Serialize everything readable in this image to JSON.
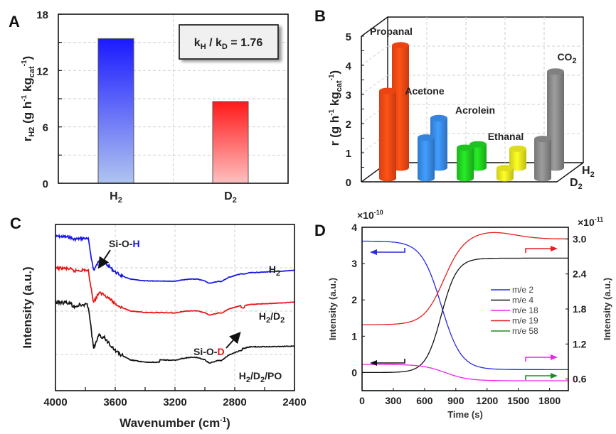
{
  "chart_data": [
    {
      "panel": "A",
      "type": "bar",
      "title": "",
      "categories": [
        "H2",
        "D2"
      ],
      "category_labels": [
        {
          "base": "H",
          "sub": "2"
        },
        {
          "base": "D",
          "sub": "2"
        }
      ],
      "values": [
        15.4,
        8.7
      ],
      "colors": [
        {
          "top": "#1a1aff",
          "bottom": "#b0c4f0"
        },
        {
          "top": "#ff1a1a",
          "bottom": "#ffc0c0"
        }
      ],
      "xlabel": "",
      "ylabel": {
        "base": "r",
        "sub": "H2",
        "rest": " (g h",
        "sup1": "-1",
        "mid": " kg",
        "sub2": "cat",
        "sup2": "-1",
        "end": ")"
      },
      "ylim": [
        0,
        18
      ],
      "yticks": [
        0,
        6,
        12,
        18
      ],
      "grid": true,
      "annotation": {
        "k1": "k",
        "s1": "H",
        "slash": " / ",
        "k2": "k",
        "s2": "D",
        "eq": " = 1.76"
      }
    },
    {
      "panel": "B",
      "type": "bar",
      "subtype": "3d-cylinder",
      "categories": [
        "Propanal",
        "Acetone",
        "Acrolein",
        "Ethanal",
        "CO2"
      ],
      "category_labels": [
        {
          "base": "Propanal",
          "sub": ""
        },
        {
          "base": "Acetone",
          "sub": ""
        },
        {
          "base": "Acrolein",
          "sub": ""
        },
        {
          "base": "Ethanal",
          "sub": ""
        },
        {
          "base": "CO",
          "sub": "2"
        }
      ],
      "colors": [
        "#ff4a14",
        "#3a8ef0",
        "#22d422",
        "#f0f020",
        "#8c8c8c"
      ],
      "series": [
        {
          "name": "D2",
          "label": {
            "base": "D",
            "sub": "2"
          },
          "values": [
            3.0,
            1.4,
            1.05,
            0.35,
            1.35
          ]
        },
        {
          "name": "H2",
          "label": {
            "base": "H",
            "sub": "2"
          },
          "values": [
            4.2,
            1.7,
            0.8,
            0.65,
            3.3
          ]
        }
      ],
      "ylabel": {
        "base": "r",
        "rest": " (g h",
        "sup1": "-1",
        "mid": " kg",
        "sub2": "cat",
        "sup2": "-1",
        "end": ")"
      },
      "ylim": [
        0,
        5
      ],
      "yticks": [
        0,
        1,
        2,
        3,
        4,
        5
      ],
      "grid": true
    },
    {
      "panel": "C",
      "type": "line",
      "xlabel": {
        "text": "Wavenumber (cm",
        "sup": "-1",
        "end": ")"
      },
      "ylabel": "Intensity (a.u.)",
      "xlim": [
        4000,
        2400
      ],
      "xticks": [
        4000,
        3600,
        3200,
        2800,
        2400
      ],
      "grid": true,
      "series": [
        {
          "name": "H2",
          "label": {
            "base": "H",
            "sub": "2"
          },
          "color": "#1414e6",
          "offset": 0.0
        },
        {
          "name": "H2/D2",
          "label": {
            "base": "H",
            "sub": "2",
            "mid": "/D",
            "sub2": "2"
          },
          "color": "#e61414",
          "offset": 0.85
        },
        {
          "name": "H2/D2/PO",
          "label": {
            "base": "H",
            "sub": "2",
            "mid": "/D",
            "sub2": "2",
            "end": "/PO"
          },
          "color": "#111111",
          "offset": 1.7
        }
      ],
      "shape_profile": {
        "x": [
          4000,
          3960,
          3900,
          3880,
          3840,
          3800,
          3780,
          3760,
          3745,
          3730,
          3710,
          3680,
          3640,
          3600,
          3560,
          3500,
          3400,
          3300,
          3200,
          3150,
          3100,
          3050,
          3000,
          2970,
          2950,
          2930,
          2910,
          2890,
          2870,
          2840,
          2800,
          2760,
          2740,
          2700,
          2600,
          2500,
          2400
        ],
        "y": [
          0.0,
          0.0,
          0.02,
          0.08,
          0.06,
          0.05,
          0.08,
          0.6,
          0.95,
          0.85,
          0.7,
          0.72,
          0.85,
          1.0,
          1.1,
          1.2,
          1.25,
          1.25,
          1.26,
          1.22,
          1.2,
          1.2,
          1.25,
          1.32,
          1.3,
          1.28,
          1.26,
          1.27,
          1.22,
          1.15,
          1.1,
          1.05,
          1.06,
          1.02,
          1.0,
          0.98,
          0.95
        ]
      },
      "annotations": [
        {
          "text": "Si-O-",
          "highlight": "H",
          "highlight_color": "#1414e6",
          "points_to_x": 3740
        },
        {
          "text": "Si-O-",
          "highlight": "D",
          "highlight_color": "#e61414",
          "points_to_x": 2750
        }
      ]
    },
    {
      "panel": "D",
      "type": "line",
      "xlabel": "Time (s)",
      "ylabel_left": "Intensity (a.u.)",
      "ylabel_right": "Intensity (a.u.)",
      "xlim": [
        0,
        1980
      ],
      "xticks": [
        0,
        300,
        600,
        900,
        1200,
        1500,
        1800
      ],
      "ylim_left": [
        -0.5,
        4
      ],
      "yticks_left": [
        0,
        1,
        2,
        3,
        4
      ],
      "ylim_right": [
        0.4,
        3.2
      ],
      "yticks_right": [
        "0.6",
        "1.2",
        "1.8",
        "2.4",
        "3.0"
      ],
      "left_multiplier": {
        "base": "×10",
        "sup": "-10"
      },
      "right_multiplier": {
        "base": "×10",
        "sup": "-11"
      },
      "grid": false,
      "series": [
        {
          "name": "m/e 2",
          "color": "#2a2ae0",
          "axis": "left",
          "start": 3.62,
          "end": 0.08,
          "t_mid": 760,
          "width": 95,
          "bump": 0
        },
        {
          "name": "m/e 4",
          "color": "#111111",
          "axis": "left",
          "start": 0.0,
          "end": 3.15,
          "t_mid": 760,
          "width": 75,
          "bump": 0
        },
        {
          "name": "m/e 18",
          "color": "#ee22ee",
          "axis": "right",
          "start": 0.85,
          "end": 0.57,
          "t_mid": 800,
          "width": 110,
          "bump": 0
        },
        {
          "name": "m/e 19",
          "color": "#e61e1e",
          "axis": "right",
          "start": 1.53,
          "end": 3.0,
          "t_mid": 780,
          "width": 95,
          "bump": 0.12
        },
        {
          "name": "m/e 58",
          "color": "#1a8f1a",
          "axis": "right",
          "start": 0.37,
          "end": 0.21,
          "t_mid": 820,
          "width": 110,
          "bump": 0
        }
      ],
      "arrows": [
        {
          "series": "m/e 2",
          "direction": "left"
        },
        {
          "series": "m/e 4",
          "direction": "left"
        },
        {
          "series": "m/e 19",
          "direction": "right"
        },
        {
          "series": "m/e 18",
          "direction": "right"
        },
        {
          "series": "m/e 58",
          "direction": "right"
        }
      ]
    }
  ]
}
